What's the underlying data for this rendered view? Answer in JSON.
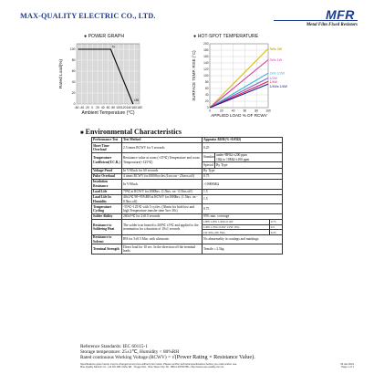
{
  "header": {
    "company": "MAX-QUALITY ELECTRIC CO., LTD.",
    "logo": "MFR",
    "subtitle": "Metal Film Fixed Resistors"
  },
  "power_graph": {
    "title": "POWER GRAPH",
    "chart_data": {
      "type": "line",
      "title": "POWER GRAPH",
      "xlabel": "Ambient Temperature (°C)",
      "ylabel": "Rated Load(%)",
      "x_ticks": [
        -60,
        -40,
        -20,
        0,
        20,
        40,
        60,
        80,
        100,
        120,
        140,
        160,
        180
      ],
      "y_ticks": [
        0,
        20,
        40,
        60,
        80,
        100
      ],
      "xlim": [
        -60,
        180
      ],
      "ylim": [
        0,
        110
      ],
      "grid": true,
      "series": [
        {
          "x": [
            -55,
            70,
            155
          ],
          "y": [
            100,
            100,
            0
          ]
        }
      ],
      "marker_labels": [
        "70",
        "155"
      ]
    }
  },
  "hotspot_graph": {
    "title": "HOT-SPOT TEMPERATURE",
    "chart_data": {
      "type": "line",
      "title": "HOT-SPOT TEMPERATURE",
      "xlabel": "APPLIED LOAD % OF RCWV",
      "ylabel": "SURFACE TEMP. RISE (°C)",
      "x_ticks": [
        0,
        20,
        40,
        60,
        80,
        100
      ],
      "y_ticks": [
        0,
        20,
        40,
        60,
        80,
        100,
        120,
        140,
        160,
        180,
        200
      ],
      "xlim": [
        0,
        100
      ],
      "ylim": [
        0,
        200
      ],
      "grid": true,
      "series": [
        {
          "name": "3Ws 2W",
          "color": "#d9c000",
          "x": [
            0,
            100
          ],
          "y": [
            0,
            185
          ]
        },
        {
          "name": "2Ws 1W",
          "color": "#d63aa0",
          "x": [
            0,
            100
          ],
          "y": [
            0,
            150
          ]
        },
        {
          "name": "1Ws 1/2W",
          "color": "#2fb8d8",
          "x": [
            0,
            100
          ],
          "y": [
            0,
            108
          ]
        },
        {
          "name": "1/2W",
          "color": "#8a62c8",
          "x": [
            0,
            100
          ],
          "y": [
            0,
            93
          ]
        },
        {
          "name": "1/4W",
          "color": "#d81f5a",
          "x": [
            0,
            100
          ],
          "y": [
            0,
            82
          ]
        },
        {
          "name": "1/4Ws 1/6W",
          "color": "#1c1c8c",
          "x": [
            0,
            100
          ],
          "y": [
            0,
            74
          ]
        }
      ]
    }
  },
  "section_title": "Environmental Characteristics",
  "table": {
    "headers": [
      "Performance Test",
      "Test Method",
      "Appraise ΔR/R(%+0.05Ω)"
    ],
    "rows": {
      "r1": {
        "item": "Short Time Overload",
        "method": "2.5 times RCWV for 5 seconds",
        "value": "0.25"
      },
      "r2": {
        "item": "Temperature Coefficient(T.C.R.)",
        "method": "Resistance value at room (+25℃) Temperature and room Temperature(+125℃)",
        "std_label": "Standard",
        "std_line1": "under 9R9Ω ±200 ppm",
        "std_line2": "10Ω to 10MΩ ±100 ppm",
        "special_label": "Special",
        "special_value": "By Type"
      },
      "r3": {
        "item": "Voltage Proof",
        "method": "In V-Block for 60 seconds",
        "value": "By Type"
      },
      "r4": {
        "item": "Pulse Overload",
        "method": "4 times RCWV for10000cycles (1sec.on - 25secs.off)",
        "value": "0.75"
      },
      "r5": {
        "item": "Insulation Resistance",
        "method": "In V-Block",
        "value": ">10000MΩ"
      },
      "r6": {
        "item": "Load Life",
        "method": "70℃ at RCWV for1000hrs. (1.5hrs. on - 0.5hrs.off)",
        "value": "1.5"
      },
      "r7": {
        "item": "Load Life In Humidity",
        "method": "40±2℃ 90~95%RH at RCWV for1000hrs. (1.5hrs. on - 0.5hrs.off)",
        "value": "1.5"
      },
      "r8": {
        "item": "Temperature Cycling",
        "method": "-55℃~125℃ with 5 cycles. (30min for both low and high Temperature transfer time 5sec 30s)",
        "value": "0.75"
      },
      "r9": {
        "item": "Solder Ability",
        "method": "260±5℃ for 2±0.5 seconds",
        "value": "95% min. coverage"
      },
      "r10": {
        "item": "Resistance to Soldering Heat",
        "method": "The solder iron heated to 260℃ ±5℃ and applied to the termination for a duration of 10±1 seconds",
        "sub1": "1/8W 1/6W 1/4Ws 0.4W",
        "val1": "0.75",
        "sub2": "1/4W 1/2Ws 0.6W 1/2W 1Ws",
        "val2": "0.5",
        "sub3": "1W 2Ws 2W 3Ws",
        "val3": "0.25"
      },
      "r11": {
        "item": "Resistance to Solvent",
        "method": "IPA for 5±0.5 Min. with ultrasonic",
        "value": "No abnormality in coatings and markings."
      },
      "r12": {
        "item": "Terminal Strength",
        "method": "Direct load for 10 sec. In the direction off the terminal leads.",
        "value": "Tensile ≥ 2.5kg"
      }
    }
  },
  "notes": {
    "line1": "Reference Standards: IEC 60115-1",
    "line2": "Storage temperature: 25±3℃, Humidity < 80%RH",
    "line3_prefix": "Rated continuous Working Voltage (RCWV) = ",
    "line3_formula": "√(Power Rating × Resistance Value)."
  },
  "footer": {
    "left_line1": "Specifications given herein may be changed at any time without prior notice. Please confirm technical specifications before you order and/or use.",
    "left_line2": "Max-Quality Electric Co., Ltd NO.186, Dahu Rd., Yingge Dist., New Taipei City Tel : 886-2-26782786 • http://www.max-quality.com.tw",
    "right_line1": "06 Jan 2021",
    "right_line2": "Page 1 of 1"
  }
}
